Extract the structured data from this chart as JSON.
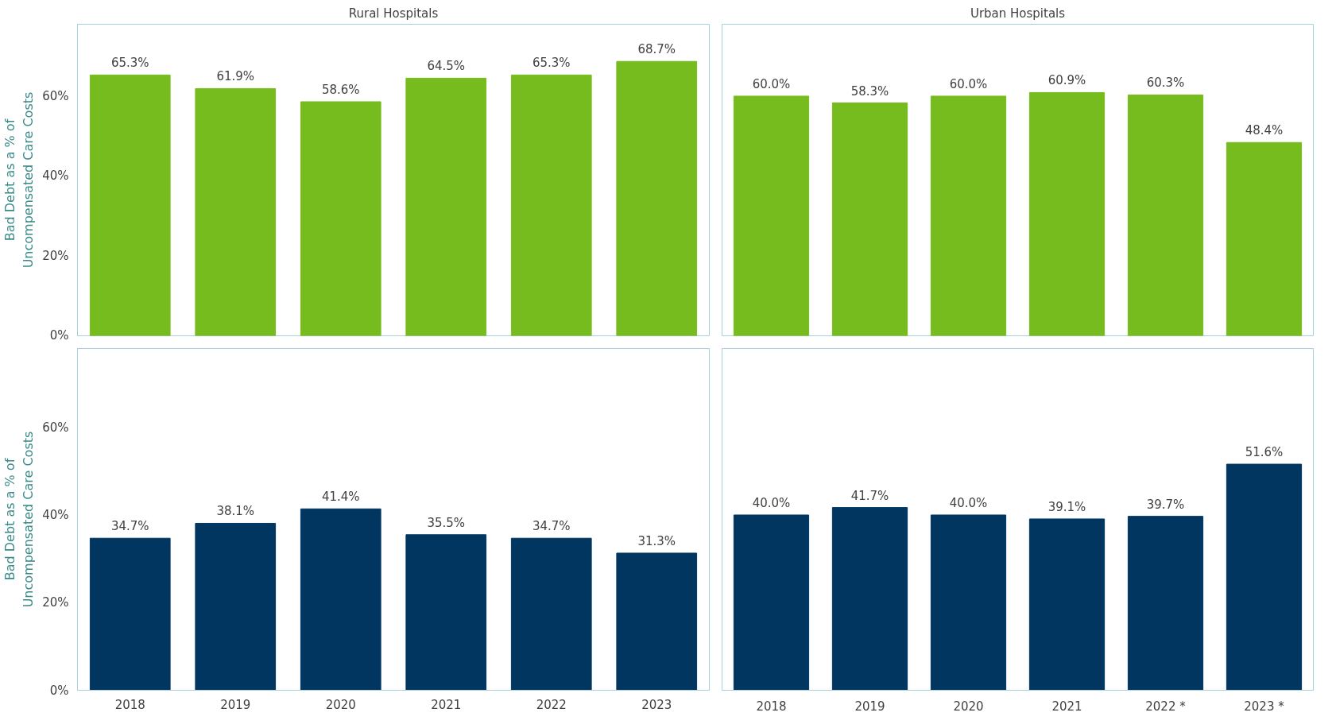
{
  "chart_data": [
    {
      "type": "bar",
      "title": "Rural Hospitals",
      "ylabel": "Bad Debt as a % of\nUncompensated Care Costs",
      "categories": [
        "2018",
        "2019",
        "2020",
        "2021",
        "2022",
        "2023"
      ],
      "values": [
        65.3,
        61.9,
        58.6,
        64.5,
        65.3,
        68.7
      ],
      "color": "#77bc1f",
      "ylim": [
        0,
        78
      ],
      "yticks": [
        {
          "value": 0,
          "label": "0%"
        },
        {
          "value": 20,
          "label": "20%"
        },
        {
          "value": 40,
          "label": "40%"
        },
        {
          "value": 60,
          "label": "60%"
        }
      ],
      "value_labels": [
        "65.3%",
        "61.9%",
        "58.6%",
        "64.5%",
        "65.3%",
        "68.7%"
      ],
      "tick_labels": "y"
    },
    {
      "type": "bar",
      "title": "Urban Hospitals",
      "categories": [
        "2018",
        "2019",
        "2020",
        "2021",
        "2022",
        "2023"
      ],
      "values": [
        60.0,
        58.3,
        60.0,
        60.9,
        60.3,
        48.4
      ],
      "color": "#77bc1f",
      "ylim": [
        0,
        78
      ],
      "value_labels": [
        "60.0%",
        "58.3%",
        "60.0%",
        "60.9%",
        "60.3%",
        "48.4%"
      ],
      "tick_labels": false
    },
    {
      "type": "bar",
      "ylabel": "Bad Debt as a % of\nUncompensated Care Costs",
      "categories": [
        "2018",
        "2019",
        "2020",
        "2021",
        "2022",
        "2023"
      ],
      "values": [
        34.7,
        38.1,
        41.4,
        35.5,
        34.7,
        31.3
      ],
      "color": "#003660",
      "ylim": [
        0,
        78
      ],
      "yticks": [
        {
          "value": 0,
          "label": "0%"
        },
        {
          "value": 20,
          "label": "20%"
        },
        {
          "value": 40,
          "label": "40%"
        },
        {
          "value": 60,
          "label": "60%"
        }
      ],
      "value_labels": [
        "34.7%",
        "38.1%",
        "41.4%",
        "35.5%",
        "34.7%",
        "31.3%"
      ]
    },
    {
      "type": "bar",
      "categories": [
        "2018",
        "2019",
        "2020",
        "2021",
        "2022 *",
        "2023 *"
      ],
      "values": [
        40.0,
        41.7,
        40.0,
        39.1,
        39.7,
        51.6
      ],
      "color": "#003660",
      "ylim": [
        0,
        78
      ],
      "value_labels": [
        "40.0%",
        "41.7%",
        "40.0%",
        "39.1%",
        "39.7%",
        "51.6%"
      ],
      "tick_labels": "x"
    }
  ]
}
